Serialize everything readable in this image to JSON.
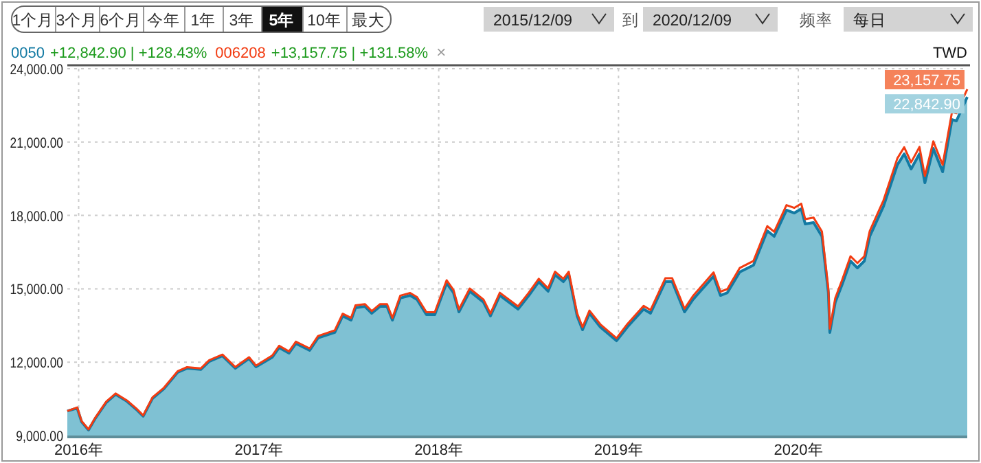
{
  "chart_data": {
    "type": "area",
    "ylabel": "TWD",
    "legend": "top left",
    "grid": true,
    "xlim": [
      "2015-12-09",
      "2020-12-09"
    ],
    "ylim": [
      9000,
      24000
    ],
    "xticks": [
      {
        "value": "2016-01-01",
        "label": "2016年"
      },
      {
        "value": "2017-01-01",
        "label": "2017年"
      },
      {
        "value": "2018-01-01",
        "label": "2018年"
      },
      {
        "value": "2019-01-01",
        "label": "2019年"
      },
      {
        "value": "2020-01-01",
        "label": "2020年"
      }
    ],
    "yticks": [
      {
        "value": 9000,
        "label": "9,000.00"
      },
      {
        "value": 12000,
        "label": "12,000.00"
      },
      {
        "value": 15000,
        "label": "15,000.00"
      },
      {
        "value": 18000,
        "label": "18,000.00"
      },
      {
        "value": 21000,
        "label": "21,000.00"
      },
      {
        "value": 24000,
        "label": "24,000.00"
      }
    ],
    "x": [
      "2015-12-09",
      "2015-12-29",
      "2016-01-07",
      "2016-01-21",
      "2016-02-03",
      "2016-02-26",
      "2016-03-16",
      "2016-04-08",
      "2016-04-27",
      "2016-05-11",
      "2016-05-30",
      "2016-06-22",
      "2016-07-20",
      "2016-08-08",
      "2016-09-05",
      "2016-09-22",
      "2016-10-19",
      "2016-11-14",
      "2016-12-12",
      "2016-12-26",
      "2017-01-28",
      "2017-02-11",
      "2017-03-03",
      "2017-03-17",
      "2017-04-14",
      "2017-05-01",
      "2017-06-04",
      "2017-06-20",
      "2017-07-07",
      "2017-07-16",
      "2017-08-04",
      "2017-08-18",
      "2017-09-04",
      "2017-09-18",
      "2017-09-29",
      "2017-10-15",
      "2017-11-04",
      "2017-11-18",
      "2017-12-07",
      "2017-12-24",
      "2018-01-17",
      "2018-01-31",
      "2018-02-11",
      "2018-03-05",
      "2018-04-02",
      "2018-04-16",
      "2018-05-05",
      "2018-06-11",
      "2018-07-03",
      "2018-07-23",
      "2018-08-11",
      "2018-08-25",
      "2018-09-11",
      "2018-09-22",
      "2018-10-09",
      "2018-10-20",
      "2018-11-03",
      "2018-11-25",
      "2018-12-28",
      "2019-01-19",
      "2019-02-21",
      "2019-03-07",
      "2019-04-06",
      "2019-04-20",
      "2019-05-15",
      "2019-06-01",
      "2019-07-13",
      "2019-07-27",
      "2019-08-10",
      "2019-09-04",
      "2019-10-02",
      "2019-10-30",
      "2019-11-13",
      "2019-12-08",
      "2019-12-24",
      "2020-01-07",
      "2020-01-15",
      "2020-02-01",
      "2020-02-18",
      "2020-03-02",
      "2020-03-05",
      "2020-03-16",
      "2020-03-30",
      "2020-04-16",
      "2020-04-30",
      "2020-05-14",
      "2020-05-25",
      "2020-06-22",
      "2020-07-20",
      "2020-08-03",
      "2020-08-17",
      "2020-09-03",
      "2020-09-14",
      "2020-10-01",
      "2020-10-20",
      "2020-11-08",
      "2020-11-17",
      "2020-12-09"
    ],
    "series": [
      {
        "name": "0050",
        "type": "area",
        "color": "#137aa3",
        "values": [
          10000,
          10120,
          9560,
          9225,
          9675,
          10350,
          10685,
          10400,
          10070,
          9790,
          10520,
          10910,
          11585,
          11750,
          11700,
          12030,
          12260,
          11750,
          12150,
          11810,
          12200,
          12595,
          12370,
          12765,
          12485,
          12990,
          13215,
          13890,
          13720,
          14225,
          14280,
          14000,
          14280,
          14280,
          13720,
          14620,
          14730,
          14560,
          13945,
          13945,
          15235,
          14840,
          14055,
          14900,
          14450,
          13890,
          14730,
          14170,
          14730,
          15290,
          14900,
          15575,
          15290,
          15575,
          13890,
          13325,
          14000,
          13440,
          12875,
          13440,
          14170,
          14000,
          15290,
          15290,
          14055,
          14560,
          15515,
          14730,
          14840,
          15685,
          15965,
          17370,
          17145,
          18215,
          18100,
          18270,
          17650,
          17710,
          17145,
          14840,
          13215,
          14450,
          15180,
          16135,
          15855,
          16135,
          17145,
          18380,
          20065,
          20515,
          19900,
          20515,
          19335,
          20740,
          19785,
          21920,
          21865,
          22842.9
        ]
      },
      {
        "name": "006208",
        "type": "line",
        "color": "#f23c12",
        "values": [
          10000,
          10150,
          9590,
          9255,
          9705,
          10385,
          10720,
          10435,
          10105,
          9825,
          10560,
          10950,
          11630,
          11795,
          11745,
          12080,
          12310,
          11800,
          12200,
          11860,
          12270,
          12670,
          12440,
          12840,
          12560,
          13070,
          13300,
          13980,
          13810,
          14320,
          14375,
          14090,
          14375,
          14375,
          13810,
          14720,
          14830,
          14660,
          14040,
          14040,
          15350,
          14950,
          14160,
          15010,
          14560,
          13990,
          14840,
          14280,
          14845,
          15410,
          15020,
          15700,
          15410,
          15700,
          14000,
          13430,
          14110,
          13550,
          12980,
          13560,
          14300,
          14130,
          15430,
          15430,
          14190,
          14700,
          15670,
          14880,
          14990,
          15850,
          16140,
          17560,
          17330,
          18420,
          18310,
          18480,
          17850,
          17910,
          17340,
          15010,
          13370,
          14620,
          15360,
          16330,
          16050,
          16330,
          17360,
          18620,
          20330,
          20790,
          20170,
          20800,
          19610,
          21030,
          20070,
          22230,
          22180,
          23157.75
        ]
      }
    ],
    "annotations": [
      "1个月",
      "3个月",
      "6个月",
      "今年",
      "1年",
      "3年",
      "5年",
      "10年",
      "最大",
      "2015/12/09",
      "到",
      "2020/12/09",
      "频率",
      "每日",
      "+12,842.90 | +128.43%",
      "+13,157.75 | +131.58%",
      "×",
      {
        "text": "23,157.75",
        "x": "2020-12-09",
        "y": 23157.75
      },
      {
        "text": "22,842.90",
        "x": "2020-12-09",
        "y": 22842.9
      }
    ]
  }
}
